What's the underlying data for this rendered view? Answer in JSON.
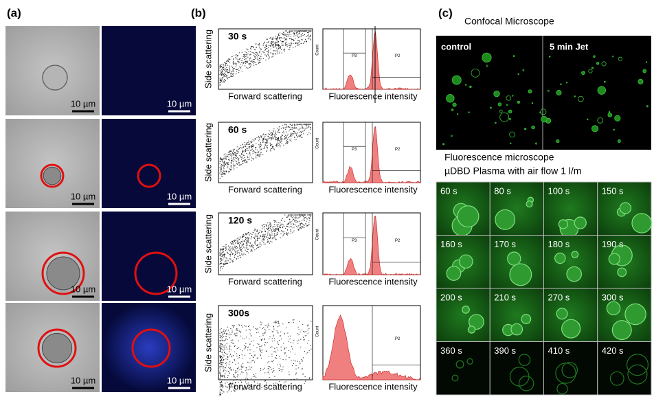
{
  "panels": {
    "a": {
      "label": "(a)",
      "rows": [
        {
          "scale_bars": [
            "10 µm",
            "10 µm"
          ]
        },
        {
          "scale_bars": [
            "10 µm",
            "10 µm"
          ]
        },
        {
          "scale_bars": [
            "10 µm",
            "10 µm"
          ]
        },
        {
          "scale_bars": [
            "10 µm",
            "10 µm"
          ]
        }
      ]
    },
    "b": {
      "label": "(b)",
      "rows": [
        {
          "time": "30 s",
          "y_label": "Side  scattering",
          "x_label": "Forward scattering",
          "gate": "P1",
          "hist_y_label": "Count",
          "hist_gates": [
            "P3",
            "P2"
          ],
          "hist_x_label": "Fluorescence intensity"
        },
        {
          "time": "60 s",
          "y_label": "Side  scattering",
          "x_label": "Forward scattering",
          "gate": "P1",
          "hist_y_label": "Count",
          "hist_gates": [
            "P3",
            "P2"
          ],
          "hist_x_label": "Fluorescence intensity"
        },
        {
          "time": "120 s",
          "y_label": "Side  scattering",
          "x_label": "Forward scattering",
          "gate": "P1",
          "hist_y_label": "Count",
          "hist_gates": [
            "P3",
            "P2"
          ],
          "hist_x_label": "Fluorescence intensity"
        },
        {
          "time": "300s",
          "y_label": "Side  scattering",
          "x_label": "Forward scattering",
          "gate": "P1",
          "hist_y_label": "Count",
          "hist_gates": [
            "P2"
          ],
          "hist_x_label": "Fluorescence intensity"
        }
      ]
    },
    "c": {
      "label": "(c)",
      "confocal_title": "Confocal Microscope",
      "confocal_labels": [
        "control",
        "5 min Jet"
      ],
      "fluor_title": [
        "Fluorescence microscope",
        "µDBD Plasma with air flow 1 l/m"
      ],
      "times": [
        "60 s",
        "80 s",
        "100 s",
        "150 s",
        "160 s",
        "170 s",
        "180 s",
        "190 s",
        "200 s",
        "210 s",
        "270 s",
        "300 s",
        "360 s",
        "390 s",
        "410 s",
        "420 s"
      ]
    }
  }
}
